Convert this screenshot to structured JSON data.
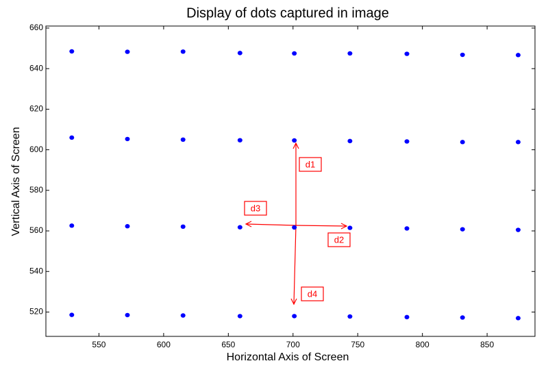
{
  "chart_data": {
    "type": "scatter",
    "title": "Display of dots captured in image",
    "xlabel": "Horizontal Axis of Screen",
    "ylabel": "Vertical Axis of Screen",
    "series": [
      {
        "color": "#0000ff",
        "x": [
          529,
          572,
          615,
          659,
          701,
          744,
          788,
          831,
          874,
          529,
          572,
          615,
          659,
          701,
          744,
          788,
          831,
          874,
          529,
          572,
          615,
          659,
          701,
          744,
          788,
          831,
          874,
          529,
          572,
          615,
          659,
          701,
          744,
          788,
          831,
          874
        ],
        "values": [
          648.5,
          648.3,
          648.4,
          647.7,
          647.5,
          647.5,
          647.3,
          646.8,
          646.7,
          606,
          605.3,
          605,
          604.7,
          604.6,
          604.3,
          604.1,
          603.8,
          603.8,
          562.6,
          562.3,
          562.1,
          561.8,
          561.7,
          561.5,
          561.2,
          560.8,
          560.5,
          518.6,
          518.5,
          518.3,
          518,
          518,
          517.8,
          517.5,
          517.3,
          517
        ]
      }
    ],
    "xlim": [
      509,
      887
    ],
    "xticks": [
      550,
      600,
      650,
      700,
      750,
      800,
      850
    ],
    "ylim": [
      508,
      661
    ],
    "yticks": [
      520,
      540,
      560,
      580,
      600,
      620,
      640,
      660
    ],
    "annotations": [
      "d1",
      "d2",
      "d3",
      "d4"
    ]
  }
}
